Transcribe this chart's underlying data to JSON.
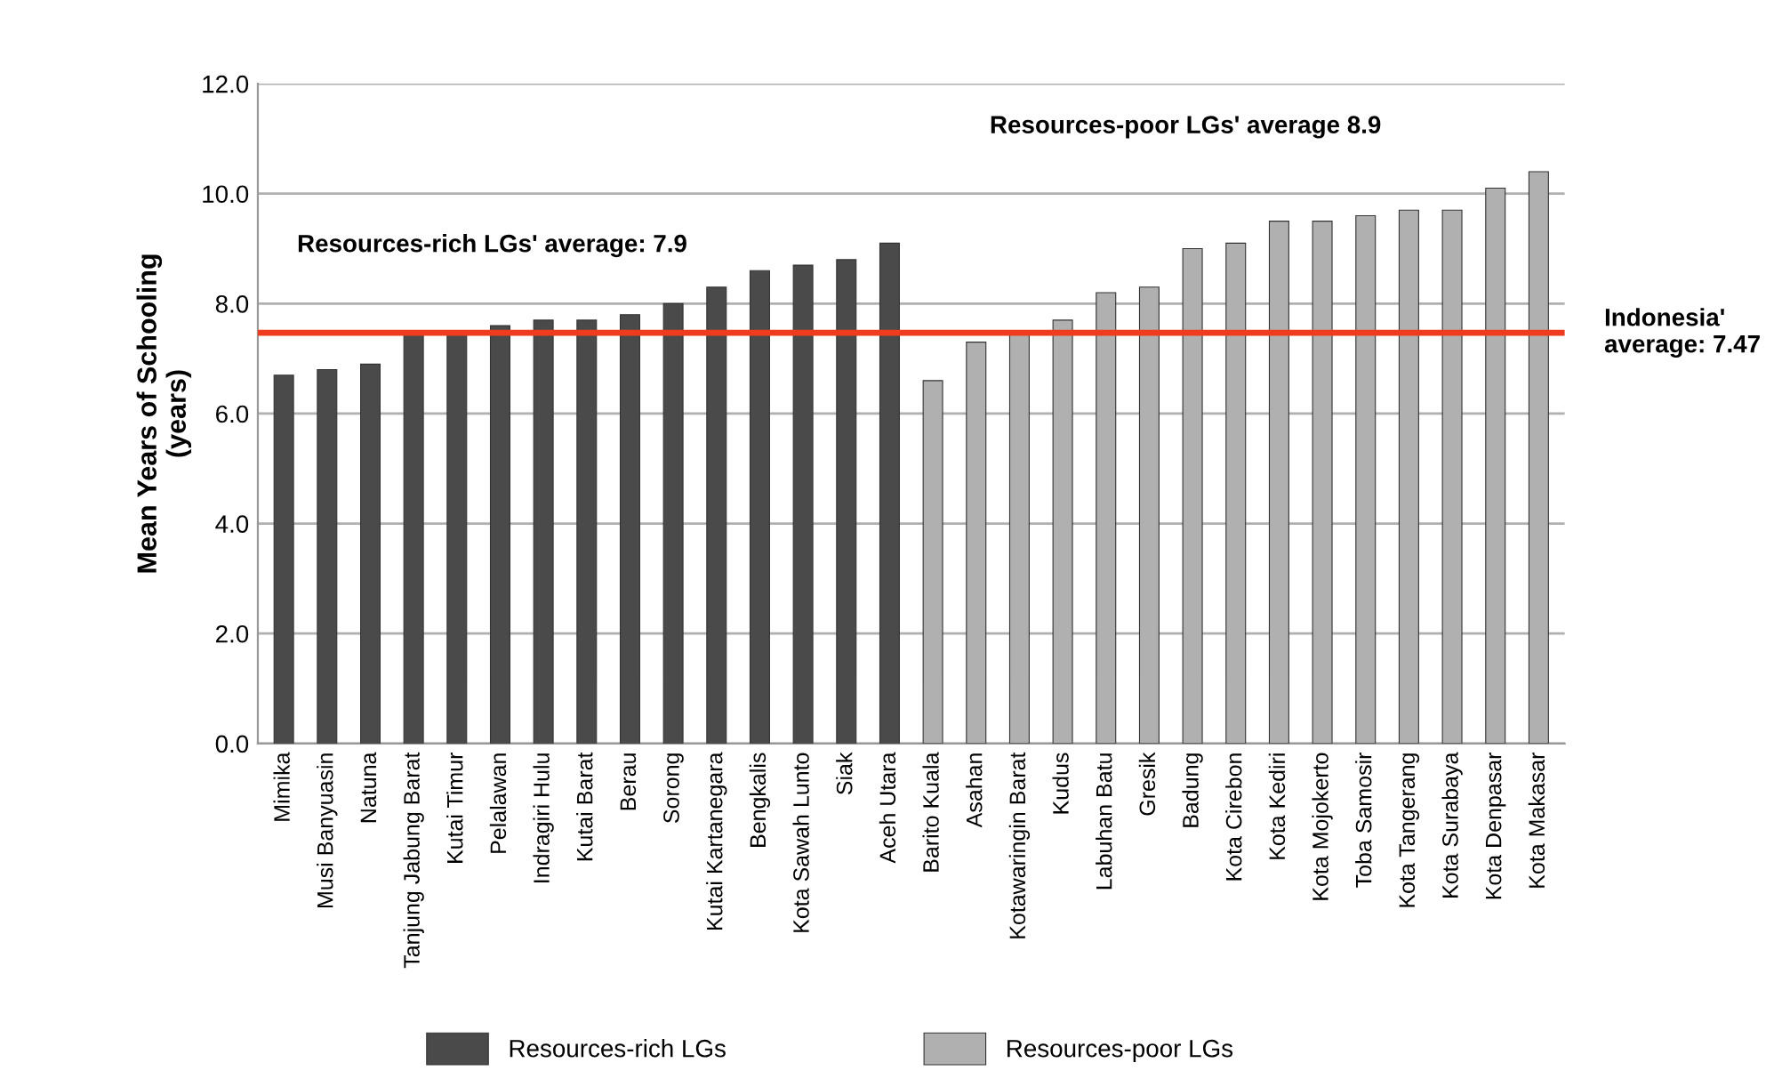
{
  "chart_data": {
    "type": "bar",
    "ylabel": "Mean Years of Schooling\n(years)",
    "categories": [
      "Mimika",
      "Musi Banyuasin",
      "Natuna",
      "Tanjung Jabung Barat",
      "Kutai Timur",
      "Pelalawan",
      "Indragiri Hulu",
      "Kutai Barat",
      "Berau",
      "Sorong",
      "Kutai Kartanegara",
      "Bengkalis",
      "Kota Sawah Lunto",
      "Siak",
      "Aceh Utara",
      "Barito Kuala",
      "Asahan",
      "Kotawaringin Barat",
      "Kudus",
      "Labuhan Batu",
      "Gresik",
      "Badung",
      "Kota Cirebon",
      "Kota Kediri",
      "Kota Mojokerto",
      "Toba Samosir",
      "Kota Tangerang",
      "Kota Surabaya",
      "Kota Denpasar",
      "Kota Makasar"
    ],
    "series": [
      {
        "name": "Resources-rich LGs",
        "color": "#4a4a4a",
        "values": [
          6.7,
          6.8,
          6.9,
          7.5,
          7.5,
          7.6,
          7.7,
          7.7,
          7.8,
          8.0,
          8.3,
          8.6,
          8.7,
          8.8,
          9.1,
          null,
          null,
          null,
          null,
          null,
          null,
          null,
          null,
          null,
          null,
          null,
          null,
          null,
          null,
          null
        ]
      },
      {
        "name": "Resources-poor LGs",
        "color": "#b0b0b0",
        "values": [
          null,
          null,
          null,
          null,
          null,
          null,
          null,
          null,
          null,
          null,
          null,
          null,
          null,
          null,
          null,
          6.6,
          7.3,
          7.5,
          7.7,
          8.2,
          8.3,
          9.0,
          9.1,
          9.5,
          9.5,
          9.6,
          9.7,
          9.7,
          10.1,
          10.4
        ]
      }
    ],
    "ylim": [
      0,
      12
    ],
    "yticks": [
      {
        "value": 0,
        "label": "0.0"
      },
      {
        "value": 2,
        "label": "2.0"
      },
      {
        "value": 4,
        "label": "4.0"
      },
      {
        "value": 6,
        "label": "6.0"
      },
      {
        "value": 8,
        "label": "8.0"
      },
      {
        "value": 10,
        "label": "10.0"
      },
      {
        "value": 12,
        "label": "12.0"
      }
    ],
    "grid": "y",
    "legend": "bottom",
    "ref_lines": [
      {
        "axis": "y",
        "value": 7.47,
        "label": "Indonesia'\naverage: 7.47",
        "color": "#f03c1e"
      }
    ],
    "annotations": [
      "Resources-rich LGs' average: 7.9",
      "Resources-poor LGs' average 8.9"
    ]
  }
}
